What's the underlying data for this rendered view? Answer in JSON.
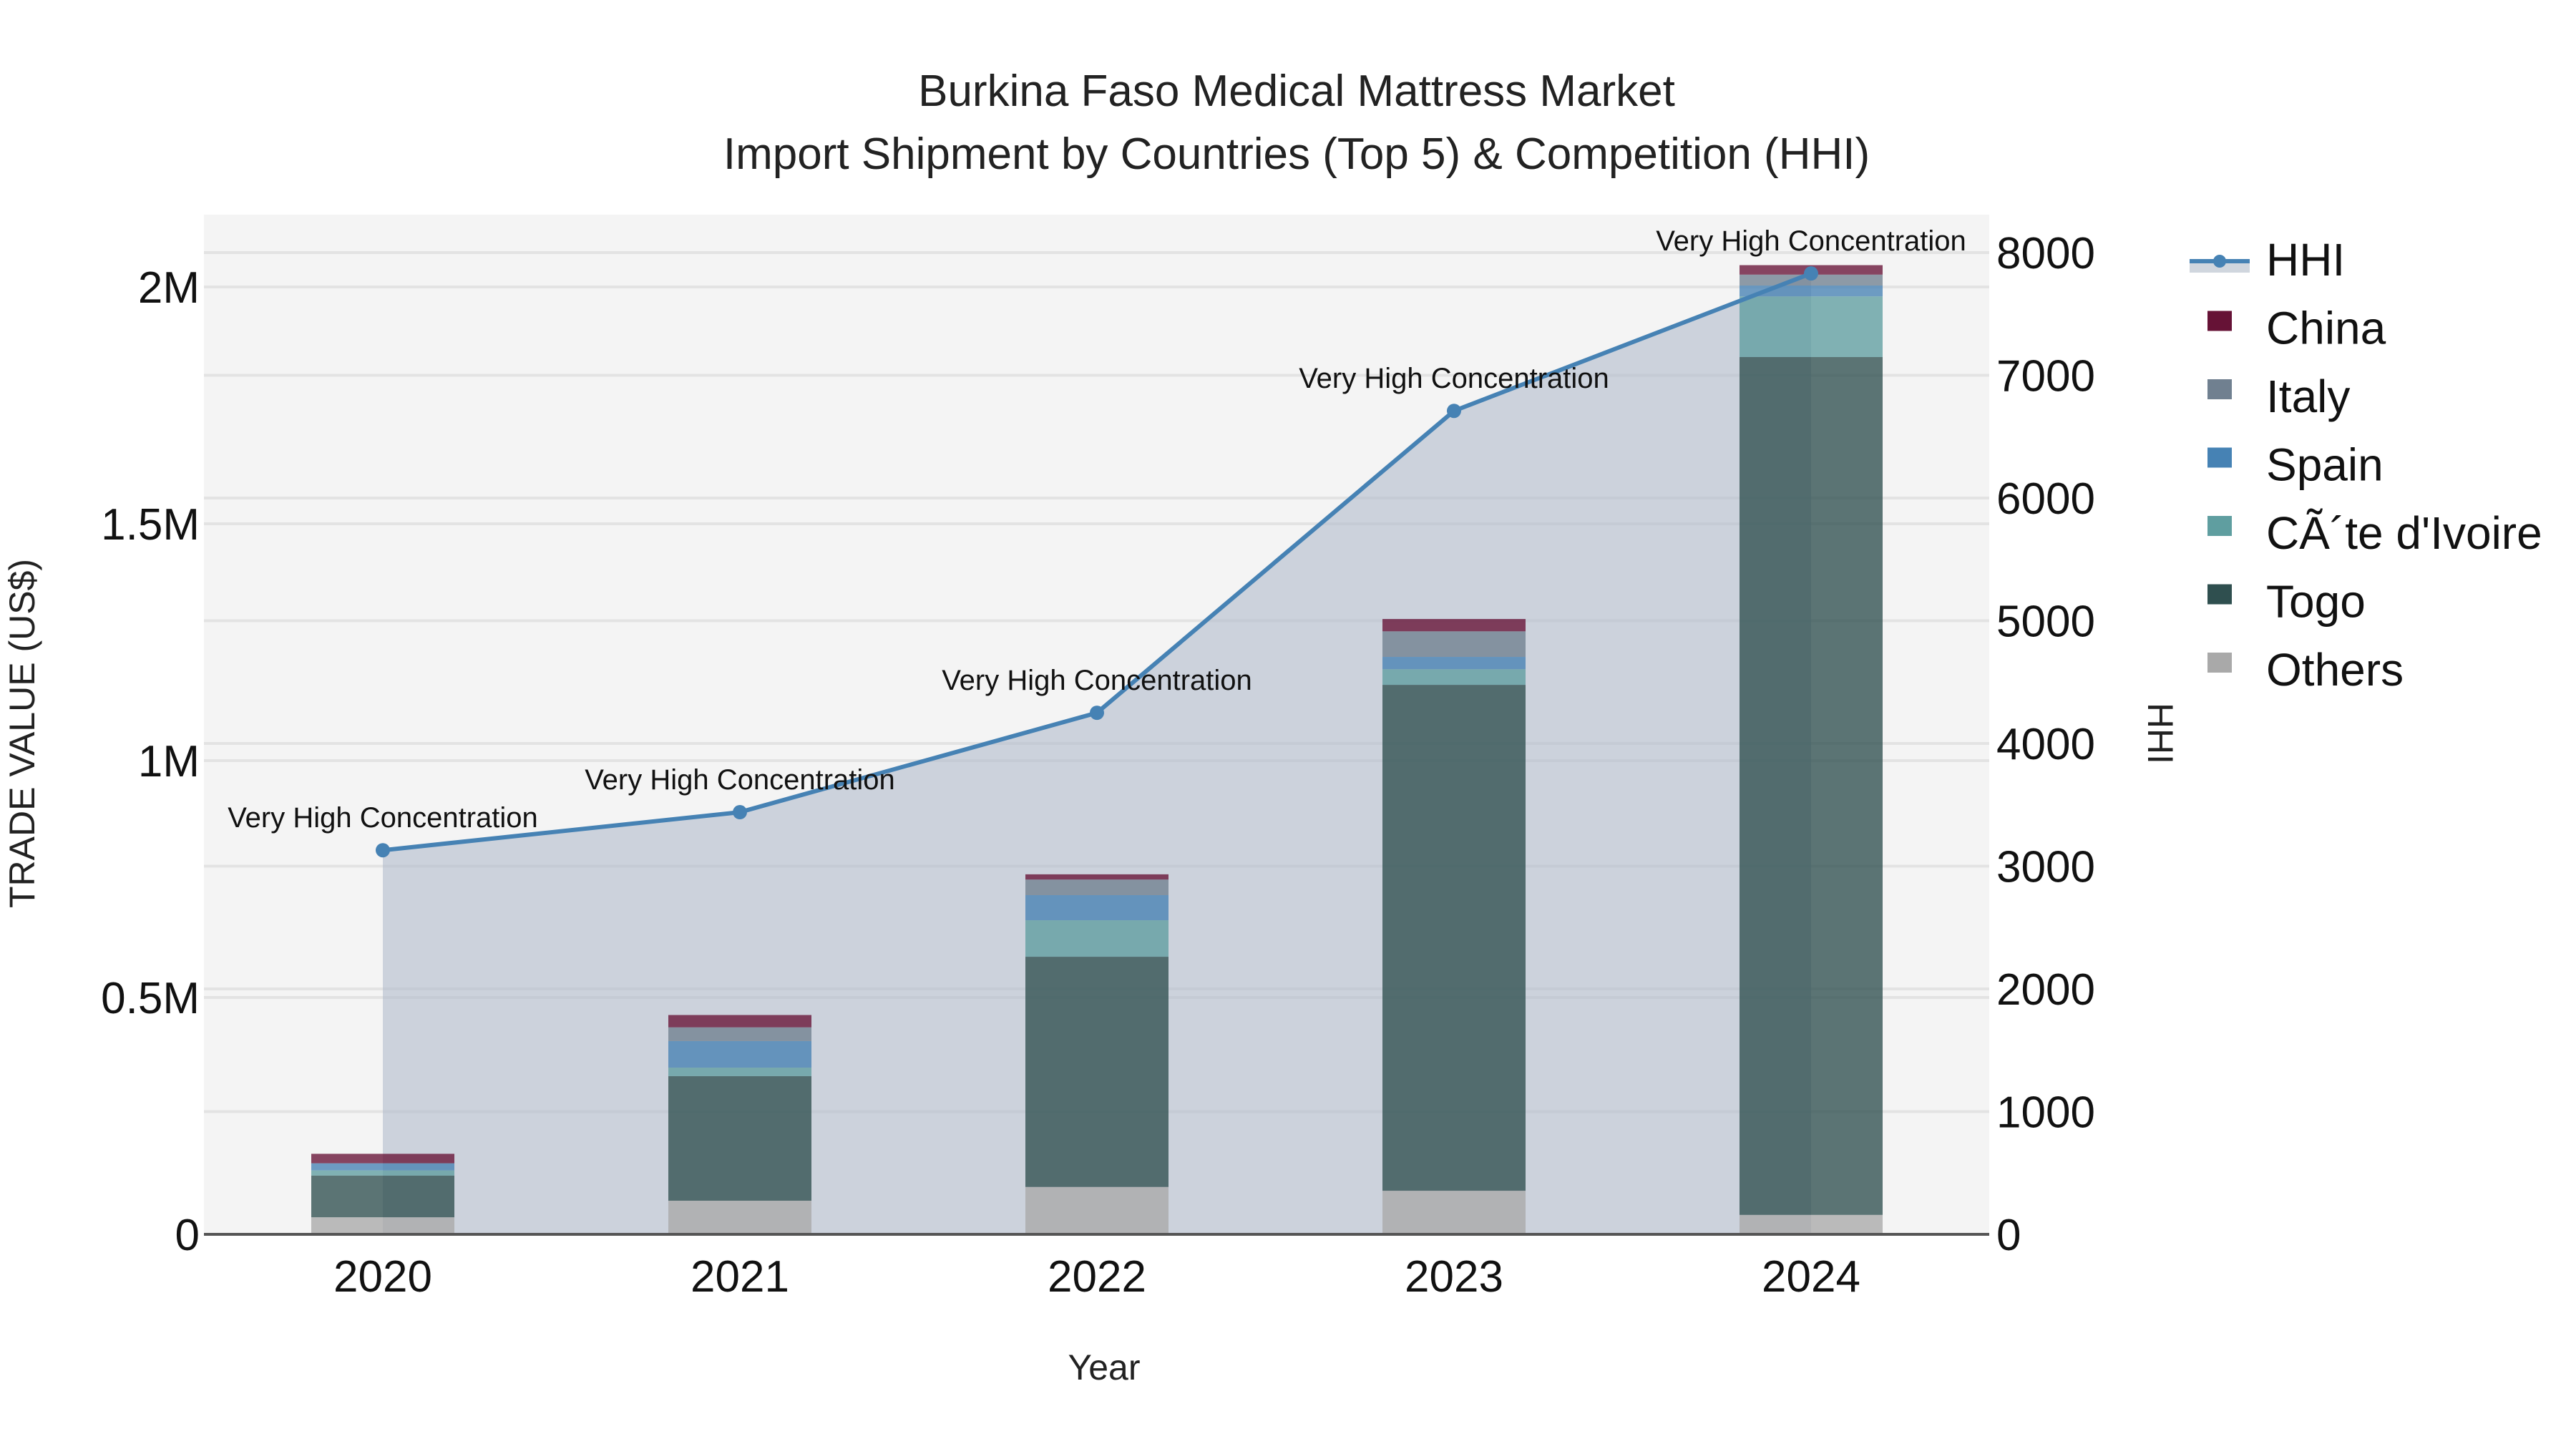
{
  "title": {
    "line1": "Burkina Faso Medical Mattress Market",
    "line2": "Import Shipment by Countries (Top 5) & Competition (HHI)"
  },
  "axes": {
    "x_title": "Year",
    "y_left_title": "TRADE VALUE (US$)",
    "y_right_title": "HHI",
    "y_left_ticks": [
      {
        "value": 0,
        "label": "0"
      },
      {
        "value": 500000,
        "label": "0.5M"
      },
      {
        "value": 1000000,
        "label": "1M"
      },
      {
        "value": 1500000,
        "label": "1.5M"
      },
      {
        "value": 2000000,
        "label": "2M"
      }
    ],
    "y_right_ticks": [
      {
        "value": 0,
        "label": "0"
      },
      {
        "value": 1000,
        "label": "1000"
      },
      {
        "value": 2000,
        "label": "2000"
      },
      {
        "value": 3000,
        "label": "3000"
      },
      {
        "value": 4000,
        "label": "4000"
      },
      {
        "value": 5000,
        "label": "5000"
      },
      {
        "value": 6000,
        "label": "6000"
      },
      {
        "value": 7000,
        "label": "7000"
      },
      {
        "value": 8000,
        "label": "8000"
      }
    ]
  },
  "legend": {
    "items": [
      {
        "label": "HHI",
        "kind": "line",
        "color": "#4682b4"
      },
      {
        "label": "China",
        "kind": "bar",
        "color": "#661236"
      },
      {
        "label": "Italy",
        "kind": "bar",
        "color": "#708090"
      },
      {
        "label": "Spain",
        "kind": "bar",
        "color": "#4682b4"
      },
      {
        "label": "CÃ´te d'Ivoire",
        "kind": "bar",
        "color": "#5f9ea0"
      },
      {
        "label": "Togo",
        "kind": "bar",
        "color": "#2f4f4f"
      },
      {
        "label": "Others",
        "kind": "bar",
        "color": "#a9a9a9"
      }
    ]
  },
  "colors": {
    "plot_bg": "#f4f4f4",
    "grid": "#e3e3e3",
    "hhi_line": "#4682b4",
    "hhi_fill": "rgba(176,186,204,0.6)",
    "axis_line": "#555555"
  },
  "chart_data": {
    "type": "bar",
    "stacked": true,
    "title": "Burkina Faso Medical Mattress Market - Import Shipment by Countries (Top 5) & Competition (HHI)",
    "xlabel": "Year",
    "ylabel": "TRADE VALUE (US$)",
    "y2label": "HHI",
    "ylim": [
      0,
      2150000
    ],
    "y2lim": [
      0,
      8300
    ],
    "categories": [
      "2020",
      "2021",
      "2022",
      "2023",
      "2024"
    ],
    "series": [
      {
        "name": "Others",
        "color": "#a9a9a9",
        "values": [
          36000,
          71000,
          100000,
          92000,
          41000
        ]
      },
      {
        "name": "Togo",
        "color": "#2f4f4f",
        "values": [
          88000,
          263000,
          486000,
          1068000,
          1811000
        ]
      },
      {
        "name": "CÃ´te d'Ivoire",
        "color": "#5f9ea0",
        "values": [
          11000,
          18000,
          77000,
          33000,
          128000
        ]
      },
      {
        "name": "Spain",
        "color": "#4682b4",
        "values": [
          15000,
          56000,
          53000,
          26000,
          23000
        ]
      },
      {
        "name": "Italy",
        "color": "#708090",
        "values": [
          0,
          29000,
          33000,
          54000,
          23000
        ]
      },
      {
        "name": "China",
        "color": "#661236",
        "values": [
          20000,
          26000,
          11000,
          26000,
          20000
        ]
      }
    ],
    "line_series": {
      "name": "HHI",
      "axis": "right",
      "color": "#4682b4",
      "values": [
        3130,
        3440,
        4250,
        6710,
        7830
      ],
      "annotations": [
        "Very High Concentration",
        "Very High Concentration",
        "Very High Concentration",
        "Very High Concentration",
        "Very High Concentration"
      ]
    },
    "grid": true,
    "legend_position": "right"
  }
}
